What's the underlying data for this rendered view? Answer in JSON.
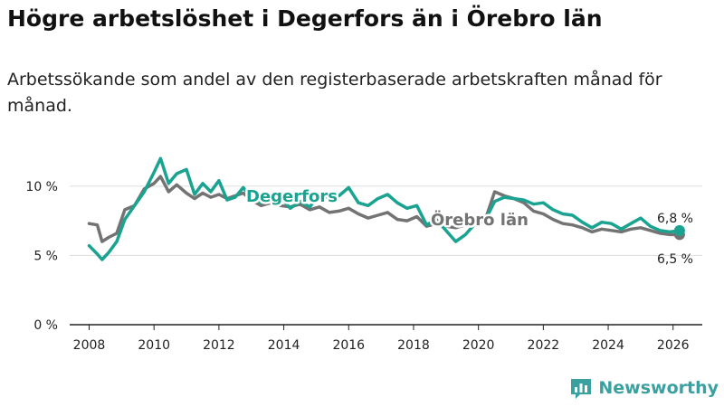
{
  "title": "Högre arbetslöshet i Degerfors än i Örebro län",
  "subtitle": "Arbetssökande som andel av den registerbaserade arbetskraften månad för månad.",
  "brand": "Newsworthy",
  "colors": {
    "degerfors": "#1aa390",
    "orebro": "#737373",
    "axis": "#222222",
    "grid": "#dddddd",
    "brand": "#3aa1a0"
  },
  "chart_data": {
    "type": "line",
    "title": "Högre arbetslöshet i Degerfors än i Örebro län",
    "xlabel": "",
    "ylabel": "",
    "xlim": [
      2007.4,
      2026.9
    ],
    "ylim": [
      0,
      12.6
    ],
    "x_ticks": [
      2008,
      2010,
      2012,
      2014,
      2016,
      2018,
      2020,
      2022,
      2024,
      2026
    ],
    "x_tick_labels": [
      "2008",
      "2010",
      "2012",
      "2014",
      "2016",
      "2018",
      "2020",
      "2022",
      "2024",
      "2026"
    ],
    "y_ticks": [
      0,
      5,
      10
    ],
    "y_tick_labels": [
      "0 %",
      "5 %",
      "10 %"
    ],
    "series": [
      {
        "name": "Degerfors",
        "label": "Degerfors",
        "last_label": "6,8 %",
        "x": [
          2008.0,
          2008.25,
          2008.4,
          2008.6,
          2008.85,
          2009.1,
          2009.4,
          2009.7,
          2010.0,
          2010.2,
          2010.45,
          2010.7,
          2011.0,
          2011.25,
          2011.5,
          2011.75,
          2012.0,
          2012.25,
          2012.5,
          2012.75,
          2013.0,
          2013.3,
          2013.6,
          2013.9,
          2014.2,
          2014.5,
          2014.8,
          2015.1,
          2015.4,
          2015.7,
          2016.0,
          2016.3,
          2016.6,
          2016.9,
          2017.2,
          2017.5,
          2017.8,
          2018.1,
          2018.4,
          2018.7,
          2019.0,
          2019.3,
          2019.6,
          2019.9,
          2020.2,
          2020.5,
          2020.8,
          2021.1,
          2021.4,
          2021.7,
          2022.0,
          2022.3,
          2022.6,
          2022.9,
          2023.2,
          2023.5,
          2023.8,
          2024.1,
          2024.4,
          2024.7,
          2025.0,
          2025.3,
          2025.6,
          2025.9,
          2026.2
        ],
        "values": [
          5.7,
          5.1,
          4.7,
          5.2,
          6.0,
          7.6,
          8.6,
          9.6,
          11.0,
          12.0,
          10.2,
          10.9,
          11.2,
          9.4,
          10.2,
          9.6,
          10.4,
          9.0,
          9.2,
          9.9,
          9.2,
          8.8,
          9.3,
          9.2,
          8.4,
          8.9,
          8.5,
          9.4,
          9.1,
          9.3,
          9.9,
          8.8,
          8.6,
          9.1,
          9.4,
          8.8,
          8.4,
          8.6,
          7.2,
          7.6,
          6.8,
          6.0,
          6.5,
          7.3,
          7.5,
          8.9,
          9.2,
          9.1,
          9.0,
          8.7,
          8.8,
          8.3,
          8.0,
          7.9,
          7.4,
          7.0,
          7.4,
          7.3,
          6.9,
          7.3,
          7.7,
          7.1,
          6.8,
          6.7,
          6.8
        ]
      },
      {
        "name": "Örebro län",
        "label": "Örebro län",
        "last_label": "6,5 %",
        "x": [
          2008.0,
          2008.25,
          2008.4,
          2008.6,
          2008.85,
          2009.1,
          2009.4,
          2009.7,
          2010.0,
          2010.2,
          2010.45,
          2010.7,
          2011.0,
          2011.25,
          2011.5,
          2011.75,
          2012.0,
          2012.25,
          2012.5,
          2012.75,
          2013.0,
          2013.3,
          2013.6,
          2013.9,
          2014.2,
          2014.5,
          2014.8,
          2015.1,
          2015.4,
          2015.7,
          2016.0,
          2016.3,
          2016.6,
          2016.9,
          2017.2,
          2017.5,
          2017.8,
          2018.1,
          2018.4,
          2018.7,
          2019.0,
          2019.3,
          2019.6,
          2019.9,
          2020.2,
          2020.5,
          2020.8,
          2021.1,
          2021.4,
          2021.7,
          2022.0,
          2022.3,
          2022.6,
          2022.9,
          2023.2,
          2023.5,
          2023.8,
          2024.1,
          2024.4,
          2024.7,
          2025.0,
          2025.3,
          2025.6,
          2025.9,
          2026.2
        ],
        "values": [
          7.3,
          7.2,
          6.0,
          6.3,
          6.6,
          8.3,
          8.6,
          9.8,
          10.2,
          10.7,
          9.6,
          10.1,
          9.5,
          9.1,
          9.5,
          9.2,
          9.4,
          9.1,
          9.3,
          9.5,
          9.0,
          8.6,
          8.8,
          8.6,
          8.5,
          8.7,
          8.3,
          8.5,
          8.1,
          8.2,
          8.4,
          8.0,
          7.7,
          7.9,
          8.1,
          7.6,
          7.5,
          7.8,
          7.1,
          7.3,
          7.1,
          7.0,
          7.2,
          7.3,
          7.5,
          9.6,
          9.3,
          9.1,
          8.8,
          8.2,
          8.0,
          7.6,
          7.3,
          7.2,
          7.0,
          6.7,
          6.9,
          6.8,
          6.7,
          6.9,
          7.0,
          6.8,
          6.6,
          6.5,
          6.5
        ]
      }
    ]
  }
}
